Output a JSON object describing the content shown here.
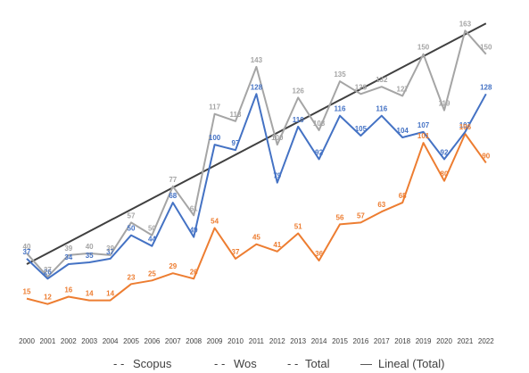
{
  "chart_data": {
    "type": "line",
    "x": [
      "2000",
      "2001",
      "2002",
      "2003",
      "2004",
      "2005",
      "2006",
      "2007",
      "2008",
      "2009",
      "2010",
      "2011",
      "2012",
      "2013",
      "2014",
      "2015",
      "2016",
      "2017",
      "2018",
      "2019",
      "2020",
      "2021",
      "2022"
    ],
    "series": [
      {
        "name": "Scopus",
        "color": "#4472c4",
        "values": [
          37,
          26,
          34,
          35,
          37,
          50,
          44,
          68,
          49,
          100,
          97,
          128,
          79,
          110,
          92,
          116,
          105,
          116,
          104,
          107,
          92,
          107,
          128
        ]
      },
      {
        "name": "Wos",
        "color": "#ed7d31",
        "values": [
          15,
          12,
          16,
          14,
          14,
          23,
          25,
          29,
          26,
          54,
          37,
          45,
          41,
          51,
          36,
          56,
          57,
          63,
          68,
          101,
          80,
          106,
          90
        ]
      },
      {
        "name": "Total",
        "color": "#a5a5a5",
        "values": [
          40,
          27,
          39,
          40,
          39,
          57,
          50,
          77,
          61,
          117,
          113,
          143,
          100,
          126,
          108,
          135,
          128,
          132,
          127,
          150,
          119,
          163,
          150
        ]
      }
    ],
    "trendline": {
      "name": "Lineal (Total)",
      "color": "#404040",
      "start": 34,
      "end": 167
    },
    "legend": [
      {
        "marker": "- -",
        "label": "Scopus"
      },
      {
        "marker": "- -",
        "label": "Wos"
      },
      {
        "marker": "- -",
        "label": "Total"
      },
      {
        "marker": "—",
        "label": "Lineal (Total)"
      }
    ],
    "ylim": [
      0,
      175
    ],
    "legend_position": "bottom",
    "grid": false
  }
}
